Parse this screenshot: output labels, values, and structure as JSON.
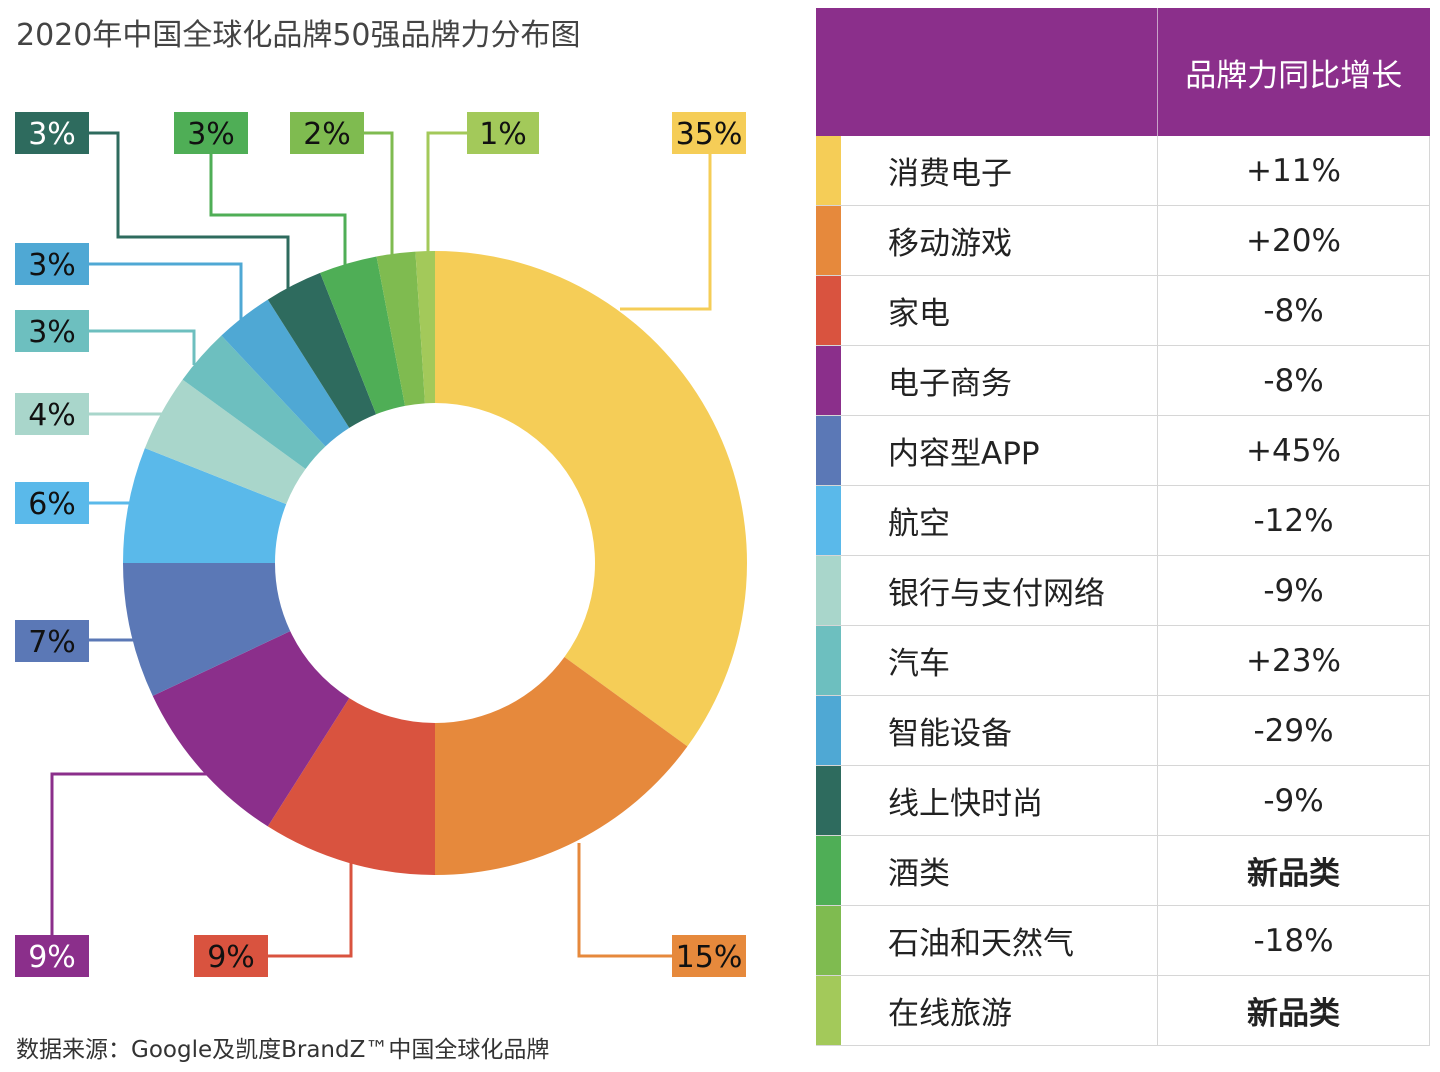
{
  "title": "2020年中国全球化品牌50强品牌力分布图",
  "source": "数据来源：Google及凯度BrandZ™中国全球化品牌",
  "table": {
    "growth_header": "品牌力同比增长",
    "rows": [
      {
        "name": "消费电子",
        "growth": "+11%",
        "color": "#f5cd57",
        "bold": false
      },
      {
        "name": "移动游戏",
        "growth": "+20%",
        "color": "#e6893c",
        "bold": false
      },
      {
        "name": "家电",
        "growth": "-8%",
        "color": "#d9533f",
        "bold": false
      },
      {
        "name": "电子商务",
        "growth": "-8%",
        "color": "#8b2f8b",
        "bold": false
      },
      {
        "name": "内容型APP",
        "growth": "+45%",
        "color": "#5b78b6",
        "bold": false
      },
      {
        "name": "航空",
        "growth": "-12%",
        "color": "#5ab9ea",
        "bold": false
      },
      {
        "name": "银行与支付网络",
        "growth": "-9%",
        "color": "#a9d6cb",
        "bold": false
      },
      {
        "name": "汽车",
        "growth": "+23%",
        "color": "#6dbfbf",
        "bold": false
      },
      {
        "name": "智能设备",
        "growth": "-29%",
        "color": "#4fa8d4",
        "bold": false
      },
      {
        "name": "线上快时尚",
        "growth": "-9%",
        "color": "#2e6b5e",
        "bold": false
      },
      {
        "name": "酒类",
        "growth": "新品类",
        "color": "#4fae56",
        "bold": true
      },
      {
        "name": "石油和天然气",
        "growth": "-18%",
        "color": "#7fbb50",
        "bold": false
      },
      {
        "name": "在线旅游",
        "growth": "新品类",
        "color": "#a3c95a",
        "bold": true
      }
    ]
  },
  "chart_data": {
    "type": "pie",
    "variant": "donut",
    "categories": [
      "消费电子",
      "移动游戏",
      "家电",
      "电子商务",
      "内容型APP",
      "航空",
      "银行与支付网络",
      "汽车",
      "智能设备",
      "线上快时尚",
      "酒类",
      "石油和天然气",
      "在线旅游"
    ],
    "values": [
      35,
      15,
      9,
      9,
      7,
      6,
      4,
      3,
      3,
      3,
      3,
      2,
      1
    ],
    "labels": [
      "35%",
      "15%",
      "9%",
      "9%",
      "7%",
      "6%",
      "4%",
      "3%",
      "3%",
      "3%",
      "3%",
      "2%",
      "1%"
    ],
    "colors": [
      "#f5cd57",
      "#e6893c",
      "#d9533f",
      "#8b2f8b",
      "#5b78b6",
      "#5ab9ea",
      "#a9d6cb",
      "#6dbfbf",
      "#4fa8d4",
      "#2e6b5e",
      "#4fae56",
      "#7fbb50",
      "#a3c95a"
    ],
    "start": "12 o'clock",
    "direction": "clockwise"
  }
}
